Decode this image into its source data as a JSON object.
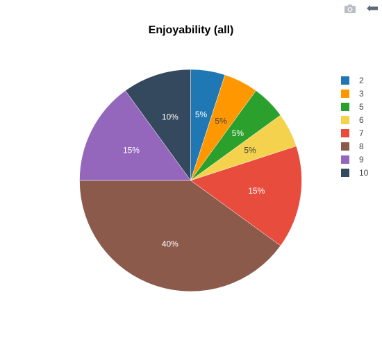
{
  "chart_data": {
    "type": "pie",
    "title": "Enjoyability (all)",
    "categories": [
      "2",
      "3",
      "5",
      "6",
      "7",
      "8",
      "9",
      "10"
    ],
    "values": [
      5,
      5,
      5,
      5,
      15,
      40,
      15,
      10
    ],
    "labels": [
      "5%",
      "5%",
      "5%",
      "5%",
      "15%",
      "40%",
      "15%",
      "10%"
    ],
    "colors": [
      "#1f77b4",
      "#ff9800",
      "#2ca02c",
      "#f4d24d",
      "#e84c3d",
      "#8b5a4b",
      "#9467bd",
      "#34495e"
    ],
    "label_colors": [
      "#ffffff",
      "#444444",
      "#ffffff",
      "#444444",
      "#ffffff",
      "#ffffff",
      "#ffffff",
      "#ffffff"
    ],
    "start_angle_deg": 90,
    "direction": "clockwise",
    "legend_position": "right"
  },
  "toolbar": {
    "icons": [
      "camera-icon",
      "back-arrow-icon"
    ]
  }
}
